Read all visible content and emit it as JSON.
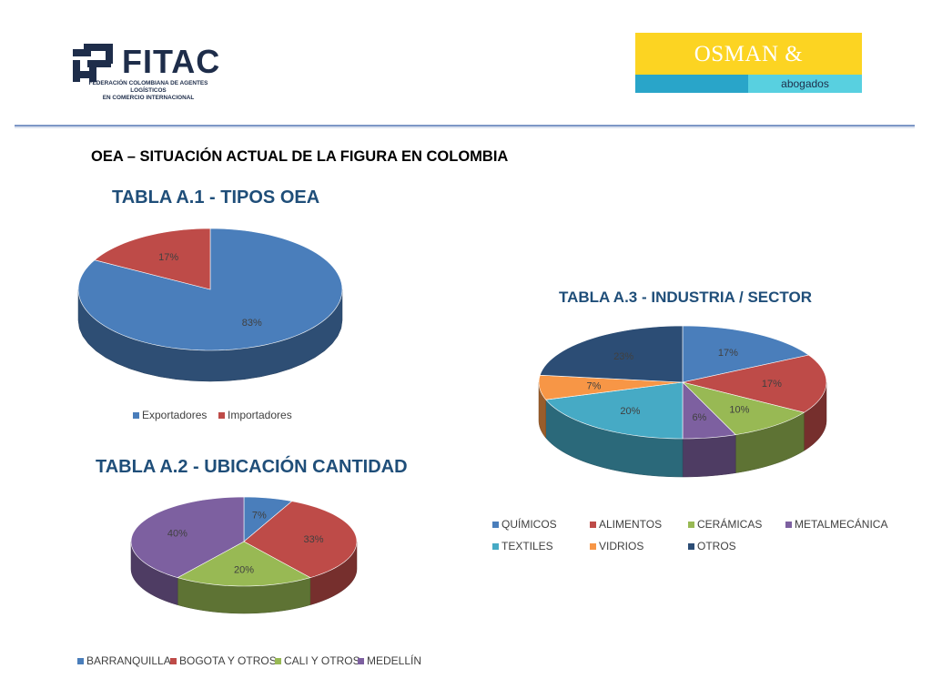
{
  "header": {
    "fitac": {
      "name": "FITAC",
      "subtitle_line1": "FEDERACIÓN COLOMBIANA DE AGENTES LOGÍSTICOS",
      "subtitle_line2": "EN COMERCIO INTERNACIONAL"
    },
    "osman": {
      "name": "OSMAN & RODRIGUEZ",
      "tagline": "abogados",
      "colors": {
        "yellow": "#fcd422",
        "blue": "#29a5c9",
        "light_blue": "#58d0e0"
      }
    }
  },
  "page": {
    "title": "OEA – SITUACIÓN ACTUAL DE LA FIGURA EN COLOMBIA"
  },
  "chart_data": [
    {
      "id": "a1",
      "type": "pie",
      "title": "TABLA A.1 - TIPOS OEA",
      "three_d": true,
      "legend_position": "bottom",
      "categories": [
        "Exportadores",
        "Importadores"
      ],
      "values": [
        83,
        17
      ],
      "labels": [
        "83%",
        "17%"
      ],
      "colors": [
        "#4a7ebb",
        "#be4b48"
      ]
    },
    {
      "id": "a2",
      "type": "pie",
      "title": "TABLA A.2 - UBICACIÓN CANTIDAD",
      "three_d": true,
      "legend_position": "bottom",
      "categories": [
        "BARRANQUILLA",
        "BOGOTA Y OTROS",
        "CALI Y OTROS",
        "MEDELLÍN"
      ],
      "values": [
        7,
        33,
        20,
        40
      ],
      "labels": [
        "7%",
        "33%",
        "20%",
        "40%"
      ],
      "colors": [
        "#4a7ebb",
        "#be4b48",
        "#98b954",
        "#7d60a0"
      ]
    },
    {
      "id": "a3",
      "type": "pie",
      "title": "TABLA A.3 - INDUSTRIA / SECTOR",
      "three_d": true,
      "legend_position": "bottom",
      "categories": [
        "QUÍMICOS",
        "ALIMENTOS",
        "CERÁMICAS",
        "METALMECÁNICA",
        "TEXTILES",
        "VIDRIOS",
        "OTROS"
      ],
      "values": [
        17,
        17,
        10,
        6,
        20,
        7,
        23
      ],
      "labels": [
        "17%",
        "17%",
        "10%",
        "6%",
        "20%",
        "7%",
        "23%"
      ],
      "colors": [
        "#4a7ebb",
        "#be4b48",
        "#98b954",
        "#7d60a0",
        "#46aac5",
        "#f79646",
        "#2c4d75"
      ]
    }
  ]
}
